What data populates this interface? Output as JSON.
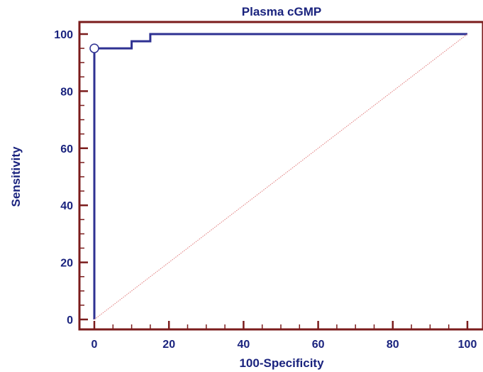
{
  "chart_data": {
    "type": "line",
    "title": "Plasma cGMP",
    "xlabel": "100-Specificity",
    "ylabel": "Sensitivity",
    "xlim": [
      0,
      100
    ],
    "ylim": [
      0,
      100
    ],
    "x_ticks": [
      0,
      20,
      40,
      60,
      80,
      100
    ],
    "y_ticks": [
      0,
      20,
      40,
      60,
      80,
      100
    ],
    "grid": false,
    "series": [
      {
        "type": "roc-step",
        "x": [
          0,
          0,
          10,
          10,
          15,
          15,
          100
        ],
        "y": [
          0,
          95,
          95,
          97.5,
          97.5,
          100,
          100
        ]
      },
      {
        "type": "reference-diagonal",
        "x": [
          0,
          100
        ],
        "y": [
          0,
          100
        ]
      }
    ],
    "marker": {
      "x": 0,
      "y": 95,
      "shape": "open-circle"
    },
    "colors": {
      "curve": "#2e3192",
      "axes": "#7b1c1c",
      "diagonal": "#e07a7a",
      "title": "#1a237e"
    }
  }
}
